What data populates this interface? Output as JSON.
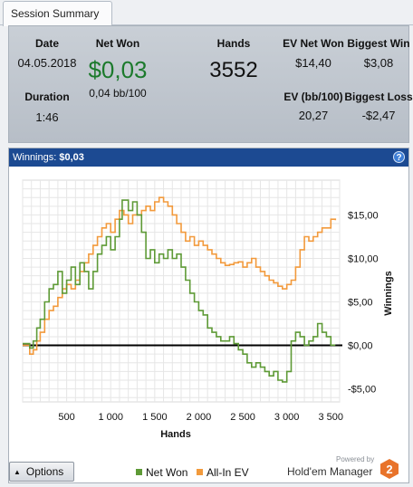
{
  "tab": {
    "label": "Session Summary"
  },
  "summary": {
    "date_label": "Date",
    "date_value": "04.05.2018",
    "duration_label": "Duration",
    "duration_value": "1:46",
    "netwon_label": "Net Won",
    "netwon_value": "$0,03",
    "netwon_bb": "0,04 bb/100",
    "hands_label": "Hands",
    "hands_value": "3552",
    "ev_netwon_label": "EV Net Won",
    "ev_netwon_value": "$14,40",
    "ev_bb_label": "EV (bb/100)",
    "ev_bb_value": "20,27",
    "biggest_win_label": "Biggest Win",
    "biggest_win_value": "$3,08",
    "biggest_loss_label": "Biggest Loss",
    "biggest_loss_value": "-$2,47"
  },
  "winnings_bar": {
    "label": "Winnings:",
    "value": "$0,03",
    "help_icon": "?"
  },
  "chart_data": {
    "type": "line",
    "xlabel": "Hands",
    "ylabel": "Winnings",
    "xlim": [
      0,
      3600
    ],
    "ylim": [
      -6.5,
      19
    ],
    "x_ticks": [
      500,
      1000,
      1500,
      2000,
      2500,
      3000,
      3500
    ],
    "x_tick_labels": [
      "500",
      "1 000",
      "1 500",
      "2 000",
      "2 500",
      "3 000",
      "3 500"
    ],
    "y_ticks": [
      15,
      10,
      5,
      0,
      -5
    ],
    "y_tick_labels": [
      "$15,00",
      "$10,00",
      "$5,00",
      "$0,00",
      "-$5,00"
    ],
    "grid": true,
    "legend_position": "bottom",
    "series": [
      {
        "name": "Net Won",
        "color": "#5e9a36",
        "x": [
          0,
          80,
          120,
          160,
          200,
          250,
          300,
          350,
          400,
          450,
          500,
          550,
          600,
          650,
          700,
          750,
          800,
          850,
          900,
          950,
          1000,
          1050,
          1100,
          1130,
          1200,
          1250,
          1300,
          1350,
          1400,
          1450,
          1500,
          1550,
          1600,
          1650,
          1700,
          1750,
          1800,
          1850,
          1900,
          1950,
          2000,
          2050,
          2100,
          2150,
          2200,
          2250,
          2300,
          2350,
          2400,
          2450,
          2500,
          2550,
          2600,
          2650,
          2700,
          2750,
          2800,
          2850,
          2900,
          2950,
          3000,
          3050,
          3100,
          3150,
          3200,
          3250,
          3300,
          3350,
          3400,
          3450,
          3500,
          3552
        ],
        "y": [
          0.2,
          -0.3,
          0.5,
          2.0,
          3.0,
          5.0,
          6.5,
          7.0,
          8.5,
          6.0,
          7.5,
          9.0,
          7.0,
          9.5,
          8.5,
          6.5,
          8.5,
          10.5,
          11.5,
          12.5,
          11.0,
          12.5,
          14.5,
          16.7,
          15.5,
          16.5,
          15.0,
          13.0,
          10.0,
          11.0,
          9.5,
          10.5,
          10.0,
          11.0,
          10.0,
          10.5,
          9.0,
          7.5,
          6.0,
          5.0,
          4.0,
          3.5,
          2.0,
          1.5,
          1.0,
          0.5,
          0.5,
          1.0,
          0.2,
          -0.5,
          -1.0,
          -2.0,
          -2.5,
          -2.0,
          -2.5,
          -3.0,
          -3.5,
          -3.0,
          -4.0,
          -4.2,
          -3.0,
          0.5,
          1.5,
          1.0,
          0.0,
          0.5,
          1.0,
          2.5,
          1.5,
          1.0,
          0.03,
          0.03
        ]
      },
      {
        "name": "All-In EV",
        "color": "#f29a3c",
        "x": [
          0,
          80,
          120,
          160,
          200,
          250,
          300,
          350,
          400,
          450,
          500,
          550,
          600,
          650,
          700,
          750,
          800,
          850,
          900,
          950,
          1000,
          1050,
          1100,
          1150,
          1200,
          1250,
          1300,
          1350,
          1400,
          1450,
          1500,
          1550,
          1600,
          1650,
          1700,
          1750,
          1800,
          1850,
          1900,
          1950,
          2000,
          2050,
          2100,
          2150,
          2200,
          2250,
          2300,
          2350,
          2400,
          2450,
          2500,
          2550,
          2600,
          2650,
          2700,
          2750,
          2800,
          2850,
          2900,
          2950,
          3000,
          3050,
          3100,
          3150,
          3200,
          3250,
          3300,
          3350,
          3400,
          3450,
          3500,
          3552
        ],
        "y": [
          0.0,
          -1.0,
          -0.5,
          0.5,
          1.5,
          3.0,
          4.0,
          4.5,
          5.5,
          6.5,
          7.0,
          6.5,
          7.5,
          8.5,
          9.5,
          10.5,
          11.5,
          12.5,
          13.5,
          14.0,
          13.0,
          14.5,
          15.5,
          15.0,
          14.0,
          15.0,
          15.0,
          15.5,
          16.0,
          15.5,
          16.5,
          17.0,
          16.5,
          16.0,
          15.0,
          14.0,
          13.0,
          12.0,
          12.5,
          11.5,
          12.0,
          11.5,
          11.0,
          10.5,
          10.0,
          9.5,
          9.2,
          9.3,
          9.5,
          9.6,
          9.0,
          9.5,
          10.0,
          9.0,
          8.5,
          8.0,
          7.5,
          7.2,
          6.8,
          6.5,
          7.0,
          7.5,
          9.0,
          11.0,
          12.5,
          12.0,
          12.5,
          13.0,
          13.5,
          13.5,
          14.5,
          14.4
        ]
      }
    ]
  }
}
